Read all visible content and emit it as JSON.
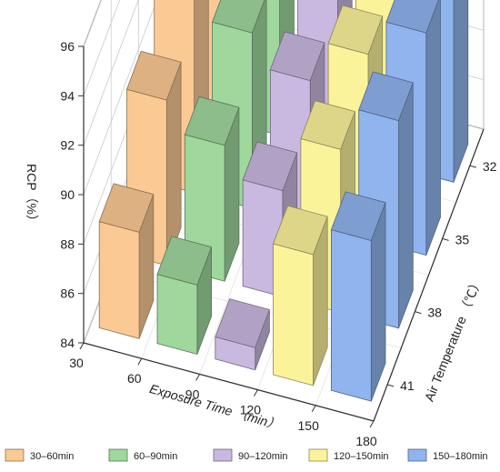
{
  "chart_data": {
    "type": "bar",
    "subtype": "3d-bar",
    "title": "",
    "zlabel": "RCP（%）",
    "xlabel": "Exposure Time （min）",
    "ylabel": "Air Temperature （℃）",
    "zlim": [
      84,
      96
    ],
    "z_ticks": [
      "84",
      "86",
      "88",
      "90",
      "92",
      "94",
      "96"
    ],
    "x_ticks": [
      "30",
      "60",
      "90",
      "120",
      "150",
      "180"
    ],
    "y_ticks": [
      "32",
      "35",
      "38",
      "41"
    ],
    "series": [
      {
        "name": "30–60min",
        "color": "#FBC994",
        "values": {
          "41": 88.3,
          "38": 90.7,
          "35": 92.2,
          "32": 93.3
        }
      },
      {
        "name": "60–90min",
        "color": "#9FD79D",
        "values": {
          "41": 86.8,
          "38": 89.5,
          "35": 91.1,
          "32": 92.5
        }
      },
      {
        "name": "90–120min",
        "color": "#C9B8E0",
        "values": {
          "41": 84.9,
          "38": 88.3,
          "35": 89.8,
          "32": 90.8
        }
      },
      {
        "name": "120–150min",
        "color": "#FBF39A",
        "values": {
          "41": 89.3,
          "38": 90.6,
          "35": 91.5,
          "32": 92.2
        }
      },
      {
        "name": "150–180min",
        "color": "#8FB4EE",
        "values": {
          "41": 90.5,
          "38": 92.4,
          "35": 93.0,
          "32": 94.1
        }
      }
    ],
    "grid": true,
    "legend_position": "bottom"
  }
}
